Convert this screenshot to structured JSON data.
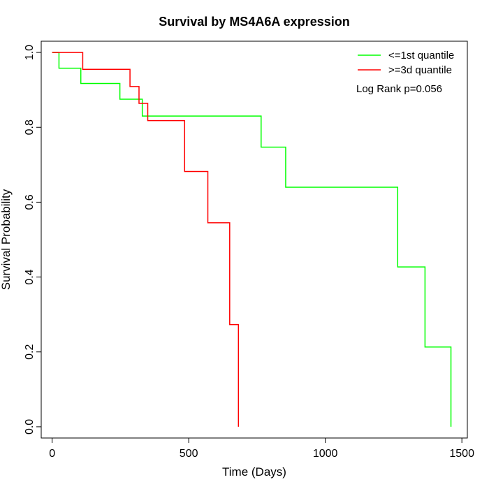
{
  "chart_data": {
    "type": "line",
    "step": true,
    "title": "Survival by MS4A6A expression",
    "xlabel": "Time (Days)",
    "ylabel": "Survival Probability",
    "xlim": [
      -40,
      1520
    ],
    "ylim": [
      -0.03,
      1.03
    ],
    "xticks": [
      0,
      500,
      1000,
      1500
    ],
    "yticks": [
      0.0,
      0.2,
      0.4,
      0.6,
      0.8,
      1.0
    ],
    "xtick_labels": [
      "0",
      "500",
      "1000",
      "1500"
    ],
    "ytick_labels": [
      "0.0",
      "0.2",
      "0.4",
      "0.6",
      "0.8",
      "1.0"
    ],
    "annotation": "Log Rank p=0.056",
    "legend_position": "top-right",
    "series": [
      {
        "name": "<=1st quantile",
        "color": "#00ff00",
        "points": [
          [
            0,
            1.0
          ],
          [
            25,
            0.958
          ],
          [
            105,
            0.917
          ],
          [
            248,
            0.875
          ],
          [
            330,
            0.83
          ],
          [
            765,
            0.747
          ],
          [
            855,
            0.64
          ],
          [
            1265,
            0.427
          ],
          [
            1365,
            0.213
          ],
          [
            1460,
            0.0
          ]
        ]
      },
      {
        "name": ">=3d quantile",
        "color": "#ff0000",
        "points": [
          [
            0,
            1.0
          ],
          [
            112,
            0.955
          ],
          [
            285,
            0.909
          ],
          [
            318,
            0.864
          ],
          [
            350,
            0.818
          ],
          [
            485,
            0.682
          ],
          [
            570,
            0.545
          ],
          [
            650,
            0.273
          ],
          [
            682,
            0.0
          ]
        ]
      }
    ]
  }
}
